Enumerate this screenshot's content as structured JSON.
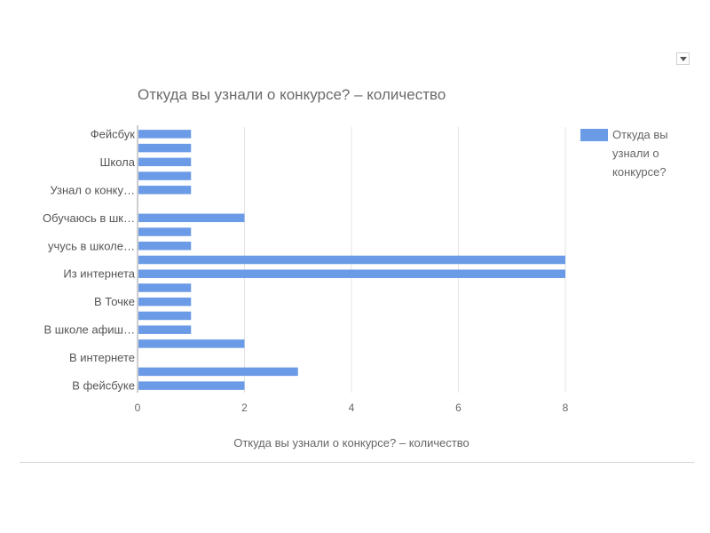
{
  "header": {
    "title": "Откуда вы узнали о конкурсе? – количество",
    "menu_icon": "dropdown-arrow-icon"
  },
  "legend": {
    "label": "Откуда вы узнали о конкурсе?"
  },
  "colors": {
    "bar": "#6b9be6",
    "grid": "#e3e3e3",
    "axis": "#9e9e9e"
  },
  "chart_data": {
    "type": "bar",
    "orientation": "horizontal",
    "title": "Откуда вы узнали о конкурсе? – количество",
    "xlabel": "Откуда вы узнали о конкурсе? – количество",
    "ylabel": "",
    "xlim": [
      0,
      8
    ],
    "xticks": [
      0,
      2,
      4,
      6,
      8
    ],
    "grid": true,
    "legend_position": "right",
    "categories": [
      "Фейсбук",
      "",
      "Школа",
      "",
      "Узнал о конку…",
      "",
      "Обучаюсь в шк…",
      "",
      "учусь в школе…",
      "",
      "Из интернета",
      "",
      "В Точке",
      "",
      "В школе афиш…",
      "",
      "В интернете",
      "",
      "В фейсбуке"
    ],
    "series": [
      {
        "name": "Откуда вы узнали о конкурсе?",
        "values": [
          1,
          1,
          1,
          1,
          1,
          0,
          2,
          1,
          1,
          8,
          8,
          1,
          1,
          1,
          1,
          2,
          0,
          3,
          2
        ]
      }
    ]
  }
}
